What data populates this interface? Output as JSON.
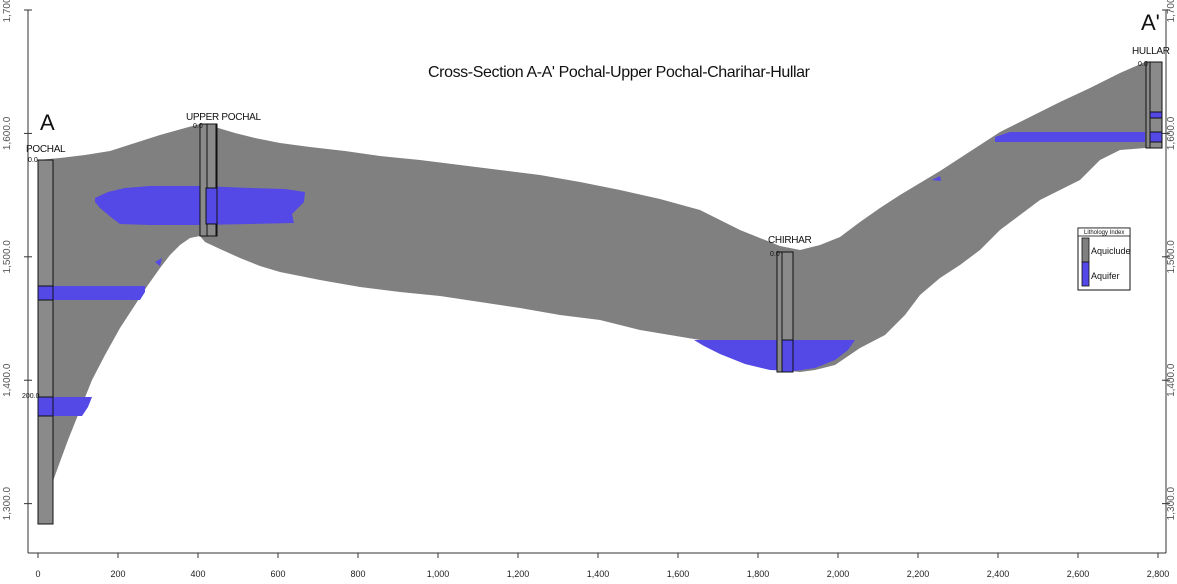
{
  "title": "Cross-Section A-A' Pochal-Upper Pochal-Charihar-Hullar",
  "endpoints": {
    "left": "A",
    "right": "A'"
  },
  "colors": {
    "aquiclude": "#808080",
    "aquifer": "#5448e6",
    "well": "#8a8a8a"
  },
  "x_axis": {
    "range": [
      0,
      2800
    ],
    "ticks": [
      "0",
      "200",
      "400",
      "600",
      "800",
      "1,000",
      "1,200",
      "1,400",
      "1,600",
      "1,800",
      "2,000",
      "2,200",
      "2,400",
      "2,600",
      "2,800"
    ]
  },
  "y_axis": {
    "range": [
      1260,
      1700
    ],
    "ticks": [
      "1,300.0",
      "1,400.0",
      "1,500.0",
      "1,600.0",
      "1,700"
    ],
    "tick_values": [
      1300,
      1400,
      1500,
      1600,
      1700
    ],
    "labels_both_sides": true
  },
  "legend": {
    "title": "Lithology Index",
    "items": [
      {
        "label": "Aquiclude",
        "color": "#808080"
      },
      {
        "label": "Aquifer",
        "color": "#5448e6"
      }
    ]
  },
  "wells": [
    {
      "name": "POCHAL",
      "x": 20,
      "top": 1575,
      "bottom": 1265,
      "depth_labels": [
        "0.0",
        "200.0"
      ]
    },
    {
      "name": "UPPER POCHAL",
      "x": 410,
      "top": 1600,
      "bottom": 1510,
      "depth_labels": [
        "0.0"
      ]
    },
    {
      "name": "CHIRHAR",
      "x": 1865,
      "top": 1495,
      "bottom": 1390,
      "depth_labels": [
        "0.0"
      ]
    },
    {
      "name": "HULLAR",
      "x": 2780,
      "top": 1660,
      "bottom": 1580,
      "depth_labels": [
        "0.0"
      ]
    }
  ],
  "chart_data": {
    "type": "area",
    "title": "Cross-Section A-A' Pochal-Upper Pochal-Charihar-Hullar",
    "xlim": [
      0,
      2800
    ],
    "ylim": [
      1260,
      1700
    ],
    "series": [
      {
        "name": "Aquiclude",
        "top": {
          "x": [
            0,
            100,
            200,
            300,
            400,
            500,
            600,
            700,
            800,
            900,
            1000,
            1100,
            1200,
            1300,
            1400,
            1500,
            1600,
            1700,
            1800,
            1900,
            2000,
            2100,
            2200,
            2300,
            2400,
            2500,
            2600,
            2700,
            2800
          ],
          "y": [
            1575,
            1578,
            1583,
            1592,
            1600,
            1592,
            1583,
            1572,
            1564,
            1558,
            1553,
            1548,
            1543,
            1537,
            1530,
            1520,
            1510,
            1500,
            1493,
            1490,
            1500,
            1523,
            1553,
            1580,
            1602,
            1620,
            1638,
            1655,
            1660
          ]
        },
        "bottom": {
          "x": [
            0,
            50,
            100,
            150,
            200,
            250,
            300,
            350,
            400,
            450,
            500,
            600,
            700,
            800,
            900,
            1000,
            1100,
            1200,
            1300,
            1400,
            1500,
            1600,
            1700,
            1800,
            1900,
            2000,
            2050,
            2100,
            2200,
            2300,
            2400,
            2500,
            2600,
            2700,
            2800
          ],
          "y": [
            1265,
            1300,
            1350,
            1405,
            1440,
            1468,
            1490,
            1505,
            1512,
            1512,
            1505,
            1492,
            1480,
            1470,
            1471,
            1462,
            1455,
            1448,
            1440,
            1430,
            1420,
            1410,
            1398,
            1390,
            1392,
            1405,
            1420,
            1440,
            1470,
            1495,
            1520,
            1545,
            1565,
            1578,
            1580
          ]
        }
      },
      {
        "name": "Aquifer",
        "lenses": [
          {
            "x": [
              180,
              700
            ],
            "y_top": [
              1550,
              1555
            ],
            "y_bottom": [
              1520,
              1520
            ]
          },
          {
            "x": [
              0,
              275
            ],
            "y": [
              1450,
              1462
            ]
          },
          {
            "x": [
              0,
              140
            ],
            "y": [
              1350,
              1368
            ]
          },
          {
            "x": [
              1640,
              2050
            ],
            "y": [
              1390,
              1413
            ]
          },
          {
            "x": [
              2400,
              2800
            ],
            "y": [
              1590,
              1600
            ]
          }
        ]
      }
    ]
  }
}
